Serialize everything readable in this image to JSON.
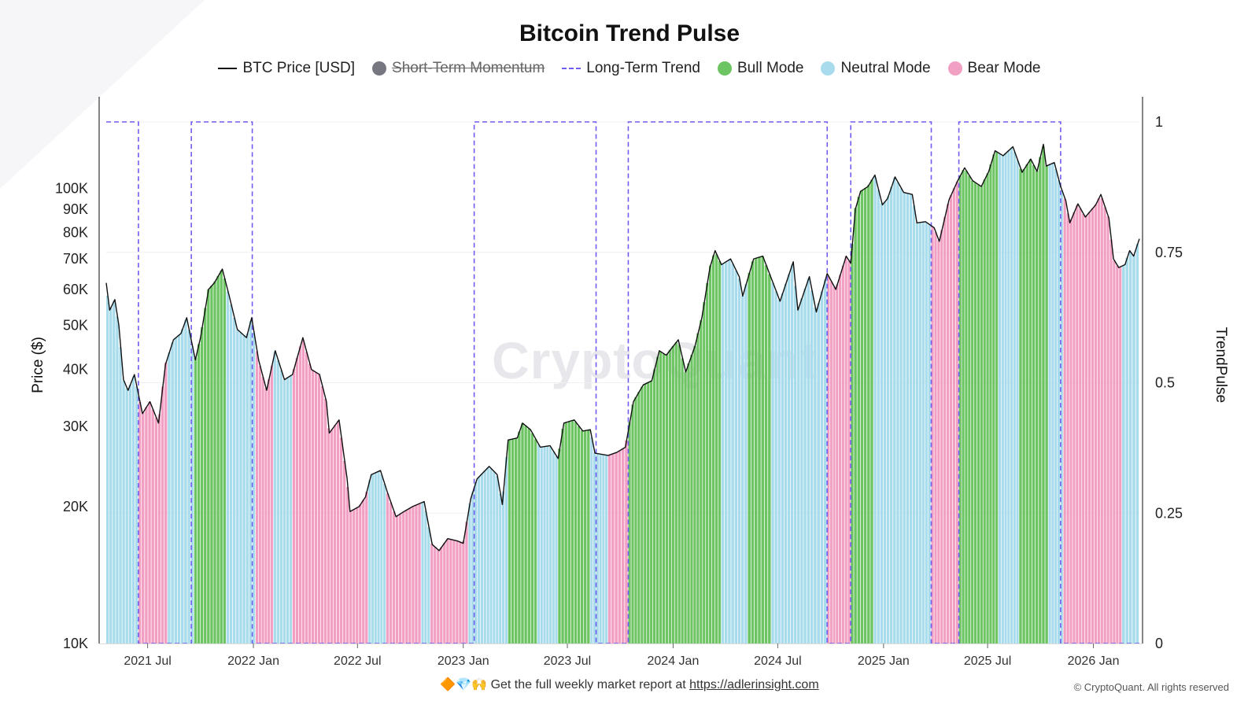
{
  "chart_data": {
    "type": "bar",
    "title": "Bitcoin Trend Pulse",
    "legend": [
      {
        "key": "price",
        "label": "BTC Price [USD]",
        "style": "line",
        "color": "#111111",
        "enabled": true
      },
      {
        "key": "stm",
        "label": "Short-Term Momentum",
        "style": "dot",
        "color": "#777782",
        "enabled": false
      },
      {
        "key": "ltt",
        "label": "Long-Term Trend",
        "style": "dash",
        "color": "#6f5cf0",
        "enabled": true
      },
      {
        "key": "bull",
        "label": "Bull Mode",
        "style": "dot",
        "color": "#6cc462",
        "enabled": true
      },
      {
        "key": "neutral",
        "label": "Neutral Mode",
        "style": "dot",
        "color": "#a8dcec",
        "enabled": true
      },
      {
        "key": "bear",
        "label": "Bear Mode",
        "style": "dot",
        "color": "#f29fc4",
        "enabled": true
      }
    ],
    "legend_position": "top-center",
    "ylabel": "Price ($)",
    "y2label": "TrendPulse",
    "y_scale": "log",
    "ylim": [
      10000,
      140000
    ],
    "y_ticks": [
      {
        "value": 10000,
        "label": "10K"
      },
      {
        "value": 20000,
        "label": "20K"
      },
      {
        "value": 30000,
        "label": "30K"
      },
      {
        "value": 40000,
        "label": "40K"
      },
      {
        "value": 50000,
        "label": "50K"
      },
      {
        "value": 60000,
        "label": "60K"
      },
      {
        "value": 70000,
        "label": "70K"
      },
      {
        "value": 80000,
        "label": "80K"
      },
      {
        "value": 90000,
        "label": "90K"
      },
      {
        "value": 100000,
        "label": "100K"
      }
    ],
    "y2lim": [
      0,
      1
    ],
    "y2_ticks": [
      {
        "value": 0,
        "label": "0"
      },
      {
        "value": 0.25,
        "label": "0.25"
      },
      {
        "value": 0.5,
        "label": "0.5"
      },
      {
        "value": 0.75,
        "label": "0.75"
      },
      {
        "value": 1,
        "label": "1"
      }
    ],
    "xlim": [
      "2021-04-20",
      "2026-03-22"
    ],
    "x_ticks": [
      {
        "date": "2021-07-01",
        "label": "2021 Jul"
      },
      {
        "date": "2022-01-01",
        "label": "2022 Jan"
      },
      {
        "date": "2022-07-01",
        "label": "2022 Jul"
      },
      {
        "date": "2023-01-01",
        "label": "2023 Jan"
      },
      {
        "date": "2023-07-01",
        "label": "2023 Jul"
      },
      {
        "date": "2024-01-01",
        "label": "2024 Jan"
      },
      {
        "date": "2024-07-01",
        "label": "2024 Jul"
      },
      {
        "date": "2025-01-01",
        "label": "2025 Jan"
      },
      {
        "date": "2025-07-01",
        "label": "2025 Jul"
      },
      {
        "date": "2026-01-01",
        "label": "2026 Jan"
      }
    ],
    "grid": true,
    "price_series": [
      [
        "2021-04-20",
        62000
      ],
      [
        "2021-04-26",
        54000
      ],
      [
        "2021-05-05",
        57000
      ],
      [
        "2021-05-12",
        50000
      ],
      [
        "2021-05-20",
        38000
      ],
      [
        "2021-05-28",
        36000
      ],
      [
        "2021-06-08",
        39000
      ],
      [
        "2021-06-22",
        32000
      ],
      [
        "2021-07-05",
        34000
      ],
      [
        "2021-07-20",
        30500
      ],
      [
        "2021-08-01",
        41000
      ],
      [
        "2021-08-15",
        46500
      ],
      [
        "2021-08-28",
        48000
      ],
      [
        "2021-09-07",
        52000
      ],
      [
        "2021-09-22",
        42000
      ],
      [
        "2021-10-01",
        47000
      ],
      [
        "2021-10-15",
        60000
      ],
      [
        "2021-10-25",
        62000
      ],
      [
        "2021-11-08",
        66500
      ],
      [
        "2021-11-20",
        58000
      ],
      [
        "2021-12-04",
        49000
      ],
      [
        "2021-12-20",
        47000
      ],
      [
        "2021-12-29",
        52000
      ],
      [
        "2022-01-10",
        42000
      ],
      [
        "2022-01-24",
        36000
      ],
      [
        "2022-02-08",
        44000
      ],
      [
        "2022-02-24",
        38000
      ],
      [
        "2022-03-10",
        39000
      ],
      [
        "2022-03-28",
        47000
      ],
      [
        "2022-04-12",
        40000
      ],
      [
        "2022-04-26",
        39000
      ],
      [
        "2022-05-08",
        34000
      ],
      [
        "2022-05-13",
        29000
      ],
      [
        "2022-05-30",
        31000
      ],
      [
        "2022-06-13",
        23000
      ],
      [
        "2022-06-18",
        19500
      ],
      [
        "2022-07-04",
        20000
      ],
      [
        "2022-07-15",
        21000
      ],
      [
        "2022-07-25",
        23500
      ],
      [
        "2022-08-10",
        24000
      ],
      [
        "2022-08-22",
        21500
      ],
      [
        "2022-09-06",
        19000
      ],
      [
        "2022-09-20",
        19500
      ],
      [
        "2022-10-05",
        20000
      ],
      [
        "2022-10-25",
        20500
      ],
      [
        "2022-11-08",
        16500
      ],
      [
        "2022-11-20",
        16000
      ],
      [
        "2022-12-05",
        17000
      ],
      [
        "2022-12-22",
        16800
      ],
      [
        "2023-01-01",
        16600
      ],
      [
        "2023-01-14",
        20800
      ],
      [
        "2023-01-25",
        23000
      ],
      [
        "2023-02-15",
        24500
      ],
      [
        "2023-03-01",
        23500
      ],
      [
        "2023-03-10",
        20200
      ],
      [
        "2023-03-20",
        28000
      ],
      [
        "2023-04-05",
        28300
      ],
      [
        "2023-04-14",
        30500
      ],
      [
        "2023-04-28",
        29500
      ],
      [
        "2023-05-15",
        27000
      ],
      [
        "2023-06-01",
        27200
      ],
      [
        "2023-06-15",
        25500
      ],
      [
        "2023-06-25",
        30500
      ],
      [
        "2023-07-13",
        31000
      ],
      [
        "2023-07-28",
        29300
      ],
      [
        "2023-08-10",
        29500
      ],
      [
        "2023-08-18",
        26200
      ],
      [
        "2023-09-10",
        25900
      ],
      [
        "2023-09-25",
        26300
      ],
      [
        "2023-10-10",
        27000
      ],
      [
        "2023-10-24",
        34000
      ],
      [
        "2023-11-10",
        37000
      ],
      [
        "2023-11-25",
        37800
      ],
      [
        "2023-12-08",
        44000
      ],
      [
        "2023-12-20",
        43000
      ],
      [
        "2024-01-10",
        46500
      ],
      [
        "2024-01-23",
        39500
      ],
      [
        "2024-02-08",
        45000
      ],
      [
        "2024-02-20",
        52000
      ],
      [
        "2024-03-05",
        67000
      ],
      [
        "2024-03-14",
        73000
      ],
      [
        "2024-03-25",
        68000
      ],
      [
        "2024-04-10",
        70000
      ],
      [
        "2024-04-25",
        64000
      ],
      [
        "2024-05-01",
        58000
      ],
      [
        "2024-05-20",
        70000
      ],
      [
        "2024-06-05",
        71000
      ],
      [
        "2024-06-25",
        61000
      ],
      [
        "2024-07-05",
        56500
      ],
      [
        "2024-07-28",
        69000
      ],
      [
        "2024-08-05",
        54000
      ],
      [
        "2024-08-25",
        64000
      ],
      [
        "2024-09-06",
        53500
      ],
      [
        "2024-09-25",
        65000
      ],
      [
        "2024-10-10",
        60000
      ],
      [
        "2024-10-28",
        71000
      ],
      [
        "2024-11-05",
        68500
      ],
      [
        "2024-11-13",
        90000
      ],
      [
        "2024-11-22",
        98500
      ],
      [
        "2024-12-05",
        101000
      ],
      [
        "2024-12-17",
        107000
      ],
      [
        "2024-12-30",
        92000
      ],
      [
        "2025-01-08",
        95000
      ],
      [
        "2025-01-21",
        106000
      ],
      [
        "2025-02-05",
        98000
      ],
      [
        "2025-02-20",
        97000
      ],
      [
        "2025-02-28",
        84000
      ],
      [
        "2025-03-15",
        84500
      ],
      [
        "2025-03-30",
        82000
      ],
      [
        "2025-04-08",
        76500
      ],
      [
        "2025-04-25",
        94500
      ],
      [
        "2025-05-10",
        104000
      ],
      [
        "2025-05-22",
        111000
      ],
      [
        "2025-06-05",
        104000
      ],
      [
        "2025-06-20",
        101000
      ],
      [
        "2025-07-03",
        109000
      ],
      [
        "2025-07-14",
        121000
      ],
      [
        "2025-07-28",
        118000
      ],
      [
        "2025-08-14",
        123500
      ],
      [
        "2025-08-30",
        108500
      ],
      [
        "2025-09-14",
        116000
      ],
      [
        "2025-09-25",
        109000
      ],
      [
        "2025-10-06",
        125000
      ],
      [
        "2025-10-11",
        112000
      ],
      [
        "2025-10-25",
        114000
      ],
      [
        "2025-11-05",
        101000
      ],
      [
        "2025-11-14",
        94000
      ],
      [
        "2025-11-21",
        84000
      ],
      [
        "2025-12-05",
        92500
      ],
      [
        "2025-12-18",
        86500
      ],
      [
        "2026-01-05",
        92000
      ],
      [
        "2026-01-14",
        97000
      ],
      [
        "2026-01-28",
        86000
      ],
      [
        "2026-02-05",
        70000
      ],
      [
        "2026-02-14",
        67000
      ],
      [
        "2026-02-25",
        68000
      ],
      [
        "2026-03-05",
        73000
      ],
      [
        "2026-03-12",
        71000
      ],
      [
        "2026-03-22",
        77500
      ]
    ],
    "long_term_trend": [
      [
        "2021-04-20",
        1
      ],
      [
        "2021-06-15",
        1
      ],
      [
        "2021-06-15",
        0
      ],
      [
        "2021-09-15",
        0
      ],
      [
        "2021-09-15",
        1
      ],
      [
        "2021-12-30",
        1
      ],
      [
        "2021-12-30",
        0
      ],
      [
        "2023-01-20",
        0
      ],
      [
        "2023-01-20",
        1
      ],
      [
        "2023-08-20",
        1
      ],
      [
        "2023-08-20",
        0
      ],
      [
        "2023-10-15",
        0
      ],
      [
        "2023-10-15",
        1
      ],
      [
        "2024-09-25",
        1
      ],
      [
        "2024-09-25",
        0
      ],
      [
        "2024-11-05",
        0
      ],
      [
        "2024-11-05",
        1
      ],
      [
        "2025-03-25",
        1
      ],
      [
        "2025-03-25",
        0
      ],
      [
        "2025-05-12",
        0
      ],
      [
        "2025-05-12",
        1
      ],
      [
        "2025-11-05",
        1
      ],
      [
        "2025-11-05",
        0
      ],
      [
        "2026-03-22",
        0
      ]
    ],
    "mode_periods": [
      {
        "start": "2021-04-20",
        "end": "2021-05-18",
        "mode": "neutral"
      },
      {
        "start": "2021-05-18",
        "end": "2021-06-15",
        "mode": "neutral"
      },
      {
        "start": "2021-06-15",
        "end": "2021-08-05",
        "mode": "bear"
      },
      {
        "start": "2021-08-05",
        "end": "2021-09-20",
        "mode": "neutral"
      },
      {
        "start": "2021-09-20",
        "end": "2021-11-15",
        "mode": "bull"
      },
      {
        "start": "2021-11-15",
        "end": "2022-01-05",
        "mode": "neutral"
      },
      {
        "start": "2022-01-05",
        "end": "2022-02-05",
        "mode": "bear"
      },
      {
        "start": "2022-02-05",
        "end": "2022-03-10",
        "mode": "neutral"
      },
      {
        "start": "2022-03-10",
        "end": "2022-07-20",
        "mode": "bear"
      },
      {
        "start": "2022-07-20",
        "end": "2022-08-20",
        "mode": "neutral"
      },
      {
        "start": "2022-08-20",
        "end": "2022-10-20",
        "mode": "bear"
      },
      {
        "start": "2022-10-20",
        "end": "2022-11-05",
        "mode": "neutral"
      },
      {
        "start": "2022-11-05",
        "end": "2023-01-10",
        "mode": "bear"
      },
      {
        "start": "2023-01-10",
        "end": "2023-03-20",
        "mode": "neutral"
      },
      {
        "start": "2023-03-20",
        "end": "2023-05-10",
        "mode": "bull"
      },
      {
        "start": "2023-05-10",
        "end": "2023-06-15",
        "mode": "neutral"
      },
      {
        "start": "2023-06-15",
        "end": "2023-08-10",
        "mode": "bull"
      },
      {
        "start": "2023-08-10",
        "end": "2023-09-10",
        "mode": "neutral"
      },
      {
        "start": "2023-09-10",
        "end": "2023-10-15",
        "mode": "bear"
      },
      {
        "start": "2023-10-15",
        "end": "2024-03-25",
        "mode": "bull"
      },
      {
        "start": "2024-03-25",
        "end": "2024-05-10",
        "mode": "neutral"
      },
      {
        "start": "2024-05-10",
        "end": "2024-06-20",
        "mode": "bull"
      },
      {
        "start": "2024-06-20",
        "end": "2024-08-15",
        "mode": "neutral"
      },
      {
        "start": "2024-08-15",
        "end": "2024-09-25",
        "mode": "neutral"
      },
      {
        "start": "2024-09-25",
        "end": "2024-10-10",
        "mode": "bear"
      },
      {
        "start": "2024-10-10",
        "end": "2024-11-05",
        "mode": "bear"
      },
      {
        "start": "2024-11-05",
        "end": "2024-12-15",
        "mode": "bull"
      },
      {
        "start": "2024-12-15",
        "end": "2025-02-15",
        "mode": "neutral"
      },
      {
        "start": "2025-02-15",
        "end": "2025-03-25",
        "mode": "neutral"
      },
      {
        "start": "2025-03-25",
        "end": "2025-05-12",
        "mode": "bear"
      },
      {
        "start": "2025-05-12",
        "end": "2025-07-20",
        "mode": "bull"
      },
      {
        "start": "2025-07-20",
        "end": "2025-08-25",
        "mode": "neutral"
      },
      {
        "start": "2025-08-25",
        "end": "2025-10-15",
        "mode": "bull"
      },
      {
        "start": "2025-10-15",
        "end": "2025-11-10",
        "mode": "neutral"
      },
      {
        "start": "2025-11-10",
        "end": "2026-02-20",
        "mode": "bear"
      },
      {
        "start": "2026-02-20",
        "end": "2026-03-22",
        "mode": "neutral"
      }
    ],
    "watermark": "CryptoQuant"
  },
  "footer": {
    "emojis": "🔶💎🙌",
    "text": "Get the full weekly market report at",
    "link": "https://adlerinsight.com"
  },
  "copyright": "© CryptoQuant. All rights reserved"
}
